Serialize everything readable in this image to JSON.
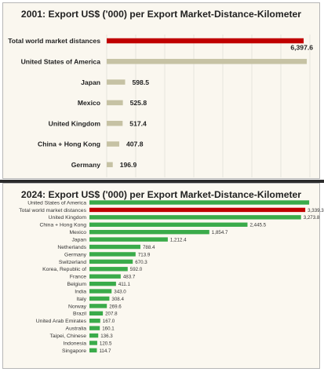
{
  "chart_data": [
    {
      "type": "bar",
      "orientation": "horizontal",
      "title": "2001: Export US$ ('000) per Export Market-Distance-Kilometer",
      "categories": [
        "Total world market distances",
        "United States of America",
        "Japan",
        "Mexico",
        "United Kingdom",
        "China + Hong Kong",
        "Germany"
      ],
      "values": [
        6397.6,
        6500,
        598.5,
        525.8,
        517.4,
        407.8,
        196.9
      ],
      "value_labels": [
        "6,397.6",
        "",
        "598.5",
        "525.8",
        "517.4",
        "407.8",
        "196.9"
      ],
      "xlim": [
        0,
        6600
      ],
      "grid": true,
      "colors": {
        "highlight": "#c00000",
        "bar": "#c6c2a4",
        "grid": "#e3e0d8"
      }
    },
    {
      "type": "bar",
      "orientation": "horizontal",
      "title": "2024: Export US$ ('000) per Export Market-Distance-Kilometer",
      "categories": [
        "United States of America",
        "Total world market distances",
        "United Kingdom",
        "China + Hong Kong",
        "Mexico",
        "Japan",
        "Netherlands",
        "Germany",
        "Switzerland",
        "Korea, Republic of",
        "France",
        "Belgium",
        "India",
        "Italy",
        "Norway",
        "Brazil",
        "United Arab Emirates",
        "Australia",
        "Taipei, Chinese",
        "Indonesia",
        "Singapore"
      ],
      "values": [
        3400,
        3339.3,
        3273.8,
        2445.5,
        1854.7,
        1212.4,
        788.4,
        713.9,
        670.3,
        592.0,
        483.7,
        411.1,
        343.0,
        308.4,
        269.6,
        207.8,
        167.0,
        160.1,
        136.3,
        120.5,
        114.7
      ],
      "value_labels": [
        "",
        "3,339.3",
        "3,273.8",
        "2,445.5",
        "1,854.7",
        "1,212.4",
        "788.4",
        "713.9",
        "670.3",
        "592.0",
        "483.7",
        "411.1",
        "343.0",
        "308.4",
        "269.6",
        "207.8",
        "167.0",
        "160.1",
        "136.3",
        "120.5",
        "114.7"
      ],
      "xlim": [
        0,
        3520
      ],
      "grid": false,
      "colors": {
        "highlight": "#c00000",
        "bar": "#3aab4a"
      }
    }
  ]
}
